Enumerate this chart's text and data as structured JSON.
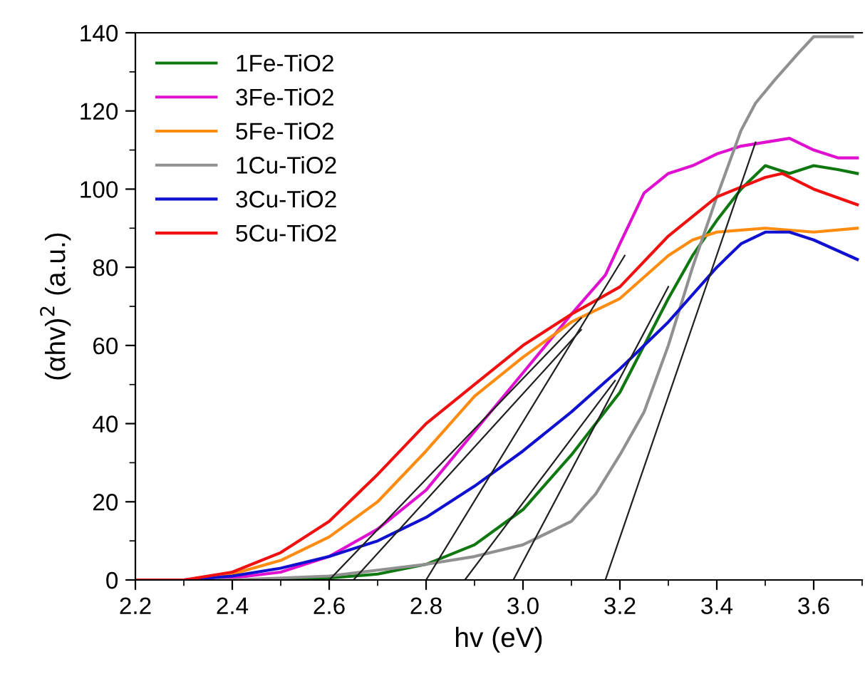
{
  "chart_data": {
    "type": "line",
    "xlabel": "hv (eV)",
    "ylabel": "(αhv)$^{2}$ (a.u.)",
    "xlim": [
      2.2,
      3.7
    ],
    "xticks": [
      {
        "value": 2.2,
        "label": "2.2"
      },
      {
        "value": 2.4,
        "label": "2.4"
      },
      {
        "value": 2.6,
        "label": "2.6"
      },
      {
        "value": 2.8,
        "label": "2.8"
      },
      {
        "value": 3.0,
        "label": "3.0"
      },
      {
        "value": 3.2,
        "label": "3.2"
      },
      {
        "value": 3.4,
        "label": "3.4"
      },
      {
        "value": 3.6,
        "label": "3.6"
      }
    ],
    "ylim": [
      0,
      140
    ],
    "yticks": [
      0,
      20,
      40,
      60,
      80,
      100,
      120,
      140
    ],
    "grid": false,
    "legend": "top left",
    "marker": "none",
    "line_style": "solid",
    "series": [
      {
        "name": "1Fe-TiO2",
        "color": "#107810",
        "x": [
          2.2,
          2.5,
          2.6,
          2.7,
          2.8,
          2.9,
          3.0,
          3.1,
          3.2,
          3.25,
          3.3,
          3.35,
          3.4,
          3.45,
          3.5,
          3.55,
          3.6,
          3.65,
          3.69
        ],
        "values": [
          0,
          0,
          0.5,
          1.5,
          4,
          9,
          18,
          32,
          48,
          60,
          72,
          83,
          92,
          100,
          106,
          104,
          106,
          105,
          104
        ]
      },
      {
        "name": "3Fe-TiO2",
        "color": "#e010d0",
        "x": [
          2.2,
          2.3,
          2.4,
          2.5,
          2.6,
          2.7,
          2.8,
          2.9,
          3.0,
          3.1,
          3.17,
          3.2,
          3.25,
          3.3,
          3.35,
          3.4,
          3.45,
          3.5,
          3.55,
          3.6,
          3.65,
          3.69
        ],
        "values": [
          0,
          0,
          0.5,
          2,
          6,
          13,
          23,
          38,
          53,
          68,
          78,
          86,
          99,
          104,
          106,
          109,
          111,
          112,
          113,
          110,
          108,
          108
        ]
      },
      {
        "name": "5Fe-TiO2",
        "color": "#ff8c10",
        "x": [
          2.2,
          2.35,
          2.4,
          2.5,
          2.6,
          2.7,
          2.8,
          2.9,
          3.0,
          3.1,
          3.2,
          3.3,
          3.35,
          3.4,
          3.5,
          3.6,
          3.69
        ],
        "values": [
          0,
          0,
          1.5,
          5,
          11,
          20,
          33,
          47,
          57,
          66,
          72,
          83,
          87,
          89,
          90,
          89,
          90
        ]
      },
      {
        "name": "1Cu-TiO2",
        "color": "#909090",
        "x": [
          2.2,
          2.4,
          2.5,
          2.6,
          2.7,
          2.8,
          2.9,
          3.0,
          3.1,
          3.15,
          3.2,
          3.25,
          3.3,
          3.35,
          3.4,
          3.45,
          3.48,
          3.52,
          3.57,
          3.6,
          3.68
        ],
        "values": [
          0,
          0,
          0.5,
          1,
          2.5,
          4,
          6,
          9,
          15,
          22,
          32,
          43,
          60,
          80,
          98,
          115,
          122,
          128,
          135,
          139,
          139
        ]
      },
      {
        "name": "3Cu-TiO2",
        "color": "#1010d0",
        "x": [
          2.2,
          2.3,
          2.4,
          2.5,
          2.6,
          2.7,
          2.8,
          2.9,
          3.0,
          3.1,
          3.2,
          3.3,
          3.4,
          3.45,
          3.5,
          3.55,
          3.6,
          3.69
        ],
        "values": [
          0,
          0,
          1,
          3,
          6,
          10,
          16,
          24,
          33,
          43,
          54,
          66,
          80,
          86,
          89,
          89,
          87,
          82
        ]
      },
      {
        "name": "5Cu-TiO2",
        "color": "#f01010",
        "x": [
          2.2,
          2.3,
          2.4,
          2.5,
          2.6,
          2.7,
          2.8,
          2.9,
          3.0,
          3.1,
          3.2,
          3.3,
          3.4,
          3.5,
          3.535,
          3.6,
          3.69
        ],
        "values": [
          0,
          0,
          2,
          7,
          15,
          27,
          40,
          50,
          60,
          68,
          75,
          88,
          98,
          103,
          104,
          100,
          96
        ]
      },
      {
        "color": "#202020",
        "x": [
          2.6,
          3.12
        ],
        "values": [
          0,
          67
        ]
      },
      {
        "color": "#202020",
        "x": [
          2.65,
          3.12
        ],
        "values": [
          0,
          64
        ]
      },
      {
        "color": "#202020",
        "x": [
          2.8,
          3.21
        ],
        "values": [
          0,
          83
        ]
      },
      {
        "color": "#202020",
        "x": [
          2.88,
          3.19
        ],
        "values": [
          0,
          51
        ]
      },
      {
        "color": "#202020",
        "x": [
          2.98,
          3.3
        ],
        "values": [
          0,
          75
        ]
      },
      {
        "color": "#202020",
        "x": [
          3.17,
          3.48
        ],
        "values": [
          0,
          112
        ]
      }
    ]
  }
}
